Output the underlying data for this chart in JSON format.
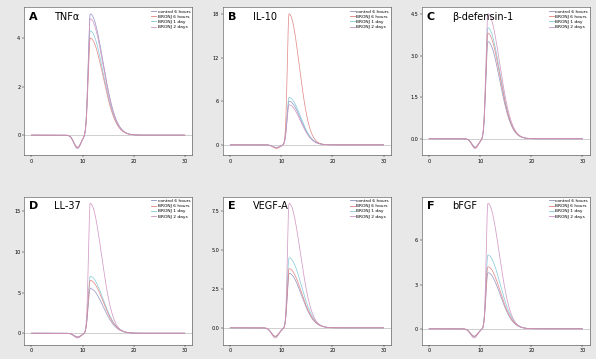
{
  "panels": [
    {
      "label": "A",
      "title": "TNFα",
      "type": "tnfa"
    },
    {
      "label": "B",
      "title": "IL-10",
      "type": "il10"
    },
    {
      "label": "C",
      "title": "β-defensin-1",
      "type": "bdefensin"
    },
    {
      "label": "D",
      "title": "LL-37",
      "type": "ll37"
    },
    {
      "label": "E",
      "title": "VEGF-A",
      "type": "vegfa"
    },
    {
      "label": "F",
      "title": "bFGF",
      "type": "bfgf"
    }
  ],
  "legend_labels": [
    "control 6 hours",
    "BRONJ 6 hours",
    "BRONJ 1 day",
    "BRONJ 2 days"
  ],
  "line_colors": [
    "#9090c0",
    "#e08080",
    "#80c8d8",
    "#d090c0"
  ],
  "background": "#e8e8e8",
  "panel_bg": "#ffffff"
}
